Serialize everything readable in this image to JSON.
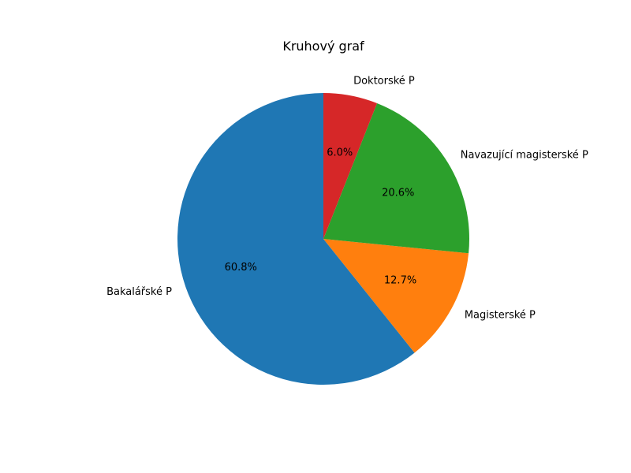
{
  "chart_data": {
    "type": "pie",
    "title": "Kruhový graf",
    "start_angle_deg": 90,
    "direction": "counterclockwise",
    "autopct_format": "%.1f%%",
    "slices": [
      {
        "label": "Bakalářské P",
        "value": 60.8,
        "pct_text": "60.8%",
        "color": "#1f77b4"
      },
      {
        "label": "Magisterské P",
        "value": 12.7,
        "pct_text": "12.7%",
        "color": "#ff7f0e"
      },
      {
        "label": "Navazující magisterské P",
        "value": 20.6,
        "pct_text": "20.6%",
        "color": "#2ca02c"
      },
      {
        "label": "Doktorské P",
        "value": 6.0,
        "pct_text": "6.0%",
        "color": "#d62728"
      }
    ]
  }
}
